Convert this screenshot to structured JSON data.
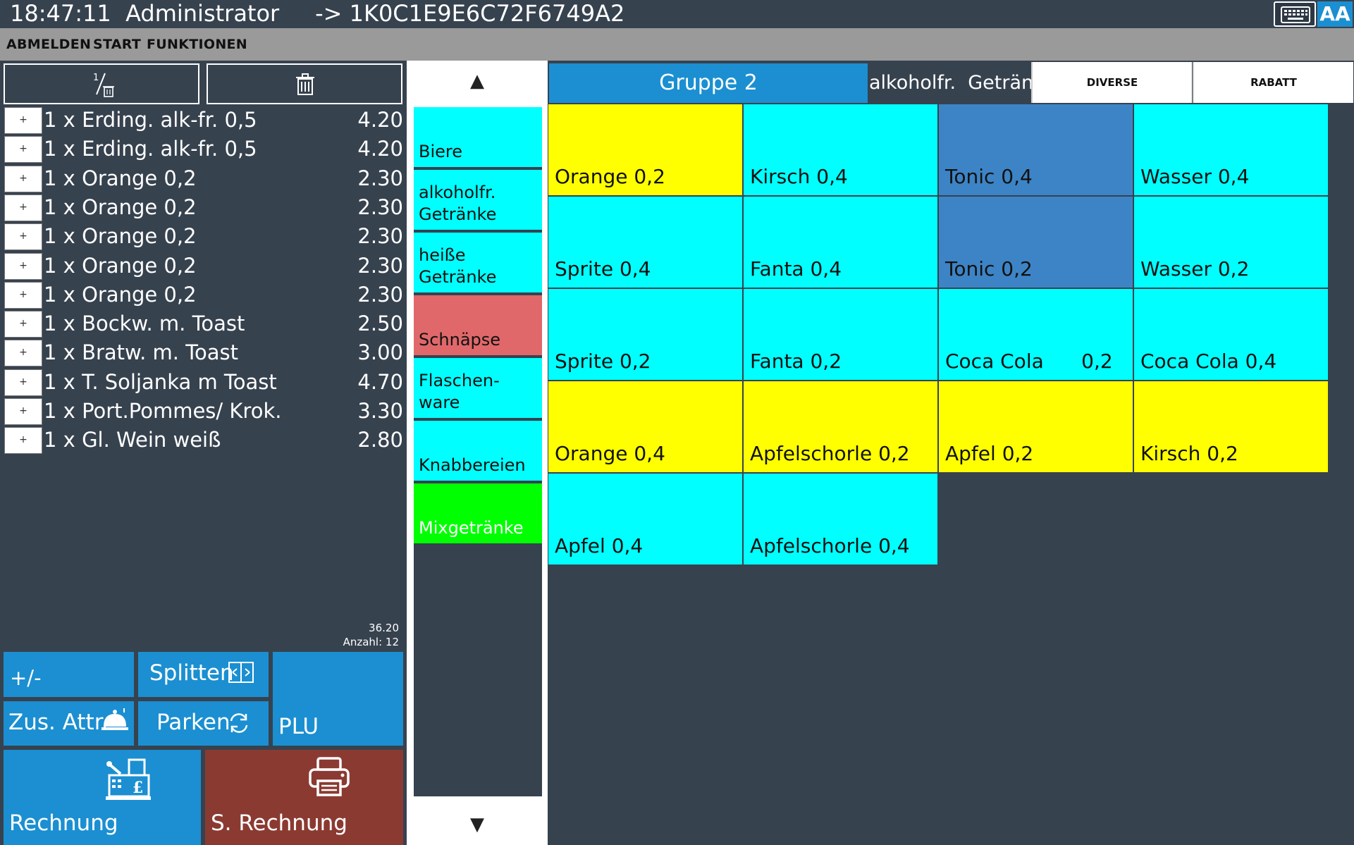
{
  "titlebar": {
    "title": "18:47:11  Administrator     -> 1K0C1E9E6C72F6749A2",
    "font_button": "AA"
  },
  "menu": [
    "ABMELDEN",
    "START",
    "FUNKTIONEN"
  ],
  "order_tools": {
    "split_glyph": "1"
  },
  "order": {
    "items": [
      {
        "qty": "1 x",
        "name": "Erding. alk-fr. 0,5",
        "price": "4.20"
      },
      {
        "qty": "1 x",
        "name": "Erding. alk-fr. 0,5",
        "price": "4.20"
      },
      {
        "qty": "1 x",
        "name": "Orange 0,2",
        "price": "2.30"
      },
      {
        "qty": "1 x",
        "name": "Orange 0,2",
        "price": "2.30"
      },
      {
        "qty": "1 x",
        "name": "Orange 0,2",
        "price": "2.30"
      },
      {
        "qty": "1 x",
        "name": "Orange 0,2",
        "price": "2.30"
      },
      {
        "qty": "1 x",
        "name": "Orange 0,2",
        "price": "2.30"
      },
      {
        "qty": "1 x",
        "name": "Bockw. m. Toast",
        "price": "2.50"
      },
      {
        "qty": "1 x",
        "name": "Bratw. m. Toast",
        "price": "3.00"
      },
      {
        "qty": "1 x",
        "name": "T. Soljanka m Toast",
        "price": "4.70"
      },
      {
        "qty": "1 x",
        "name": "Port.Pommes/ Krok.",
        "price": "3.30"
      },
      {
        "qty": "1 x",
        "name": "Gl. Wein weiß",
        "price": "2.80"
      }
    ],
    "row_plus": "+",
    "total": "36.20",
    "count_label": "Anzahl:  12"
  },
  "actions": {
    "plusminus": "+/-",
    "split": "Splitten",
    "plu": "PLU",
    "attr": "Zus. Attr.",
    "park": "Parken",
    "bill": "Rechnung",
    "sbill": "S. Rechnung"
  },
  "categories": {
    "up": "▲",
    "down": "▼",
    "items": [
      {
        "label": "Biere",
        "color": "#00ffff",
        "text_color": "#111111"
      },
      {
        "label": "alkoholfr. Getränke",
        "color": "#00ffff",
        "text_color": "#111111"
      },
      {
        "label": "heiße Getränke",
        "color": "#00ffff",
        "text_color": "#111111"
      },
      {
        "label": "Schnäpse",
        "color": "#e0686a",
        "text_color": "#111111"
      },
      {
        "label": "Flaschen- ware",
        "color": "#00ffff",
        "text_color": "#111111"
      },
      {
        "label": "Knabbereien",
        "color": "#00ffff",
        "text_color": "#111111"
      },
      {
        "label": "Mixgetränke",
        "color": "#00ff00",
        "text_color": "#ffffff"
      }
    ]
  },
  "group": {
    "tab": "Gruppe 2",
    "name": "alkoholfr.  Getränke",
    "diverse": "DIVERSE",
    "rabatt": "RABATT"
  },
  "products": [
    {
      "label": "Orange 0,2",
      "color": "#ffff00"
    },
    {
      "label": "Kirsch 0,4",
      "color": "#00ffff"
    },
    {
      "label": "Tonic 0,4",
      "color": "#3d84c6"
    },
    {
      "label": "Wasser 0,4",
      "color": "#00ffff"
    },
    {
      "label": "Sprite 0,4",
      "color": "#00ffff"
    },
    {
      "label": "Fanta 0,4",
      "color": "#00ffff"
    },
    {
      "label": "Tonic 0,2",
      "color": "#3d84c6"
    },
    {
      "label": "Wasser 0,2",
      "color": "#00ffff"
    },
    {
      "label": "Sprite 0,2",
      "color": "#00ffff"
    },
    {
      "label": "Fanta 0,2",
      "color": "#00ffff"
    },
    {
      "label": "Coca Cola      0,2",
      "color": "#00ffff"
    },
    {
      "label": "Coca Cola 0,4",
      "color": "#00ffff"
    },
    {
      "label": "Orange 0,4",
      "color": "#ffff00"
    },
    {
      "label": "Apfelschorle 0,2",
      "color": "#ffff00"
    },
    {
      "label": "Apfel 0,2",
      "color": "#ffff00"
    },
    {
      "label": "Kirsch 0,2",
      "color": "#ffff00"
    },
    {
      "label": "Apfel 0,4",
      "color": "#00ffff"
    },
    {
      "label": "Apfelschorle 0,4",
      "color": "#00ffff"
    }
  ]
}
